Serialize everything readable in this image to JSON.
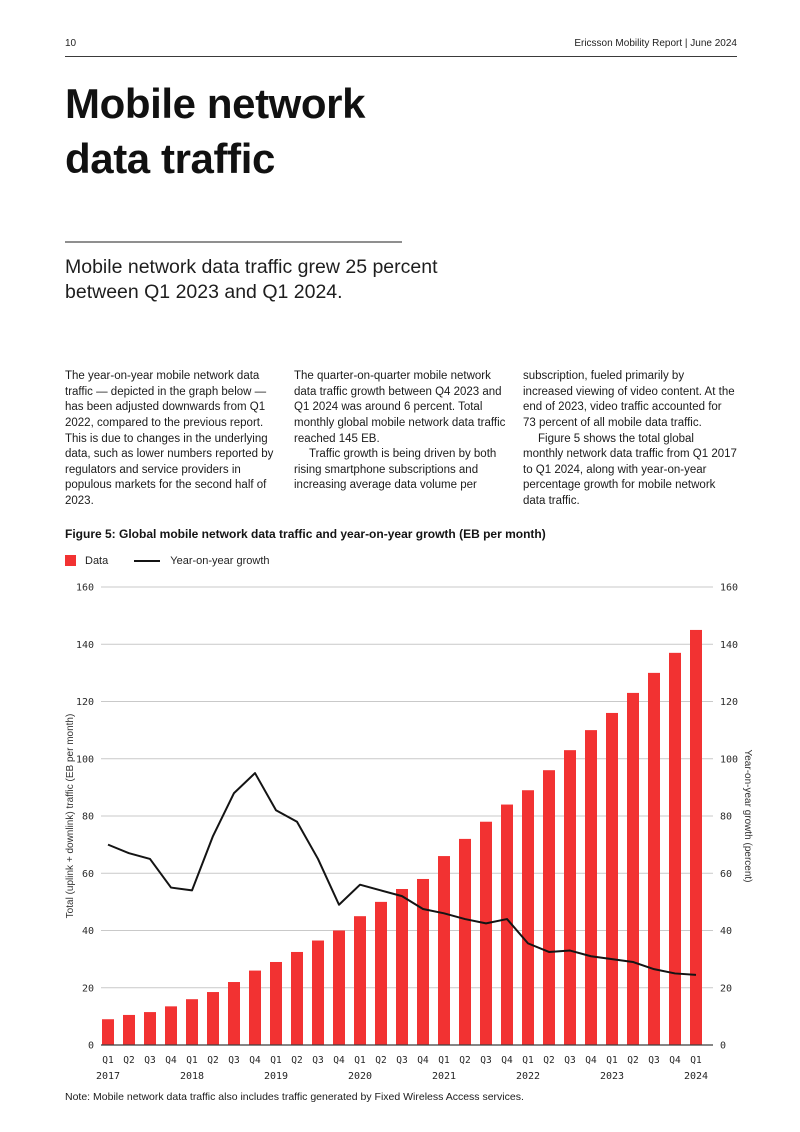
{
  "header": {
    "page_number": "10",
    "right_text": "Ericsson Mobility Report  |  June 2024"
  },
  "title": {
    "line1": "Mobile network",
    "line2": "data traffic"
  },
  "subtitle": "Mobile network data traffic grew 25 percent between Q1 2023 and Q1 2024.",
  "body": {
    "col1_p1": "The year-on-year mobile network data traffic — depicted in the graph below — has been adjusted downwards from Q1 2022, compared to the previous report. This is due to changes in the underlying data, such as lower numbers reported by regulators and service providers in populous markets for the second half of 2023.",
    "col2_p1": "The quarter-on-quarter mobile network data traffic growth between Q4 2023 and Q1 2024 was around 6 percent. Total monthly global mobile network data traffic reached 145 EB.",
    "col2_p2": "Traffic growth is being driven by both rising smartphone subscriptions and increasing average data volume per",
    "col3_p1": "subscription, fueled primarily by increased viewing of video content. At the end of 2023, video traffic accounted for 73 percent of all mobile data traffic.",
    "col3_p2": "Figure 5 shows the total global monthly network data traffic from Q1 2017 to Q1 2024, along with year-on-year percentage growth for mobile network data traffic."
  },
  "figure": {
    "caption": "Figure 5: Global mobile network data traffic and year-on-year growth (EB per month)",
    "legend": [
      {
        "label": "Data",
        "type": "square",
        "color": "#f23232"
      },
      {
        "label": "Year-on-year growth",
        "type": "line",
        "color": "#141414"
      }
    ]
  },
  "chart_data": {
    "type": "bar+line",
    "categories": [
      "Q1",
      "Q2",
      "Q3",
      "Q4",
      "Q1",
      "Q2",
      "Q3",
      "Q4",
      "Q1",
      "Q2",
      "Q3",
      "Q4",
      "Q1",
      "Q2",
      "Q3",
      "Q4",
      "Q1",
      "Q2",
      "Q3",
      "Q4",
      "Q1",
      "Q2",
      "Q3",
      "Q4",
      "Q1",
      "Q2",
      "Q3",
      "Q4",
      "Q1"
    ],
    "year_labels": [
      "2017",
      "2018",
      "2019",
      "2020",
      "2021",
      "2022",
      "2023",
      "2024"
    ],
    "series": [
      {
        "name": "Data",
        "type": "bar",
        "color": "#f23232",
        "values": [
          9,
          10.5,
          11.5,
          13.5,
          16,
          18.5,
          22,
          26,
          29,
          32.5,
          36.5,
          40,
          45,
          50,
          54.5,
          58,
          66,
          72,
          78,
          84,
          89,
          96,
          103,
          110,
          116,
          123,
          130,
          137,
          145
        ]
      },
      {
        "name": "Year-on-year growth",
        "type": "line",
        "color": "#141414",
        "values": [
          70,
          67,
          65,
          55,
          54,
          73,
          88,
          95,
          82,
          78,
          65,
          49,
          56,
          54,
          52,
          47.5,
          46,
          44,
          42.5,
          44,
          35.5,
          32.5,
          33,
          31,
          30,
          29,
          26.5,
          25,
          24.5
        ]
      }
    ],
    "left_axis": {
      "label": "Total (uplink + downlink) traffic (EB per month)",
      "min": 0,
      "max": 160,
      "step": 20
    },
    "right_axis": {
      "label": "Year-on-year growth (percent)",
      "min": 0,
      "max": 160,
      "step": 20
    },
    "grid": true,
    "grid_color": "#c9c9c9",
    "axis_color": "#3f3f3f",
    "legend_position": "top-left"
  },
  "note": "Note: Mobile network data traffic also includes traffic generated by Fixed Wireless Access services."
}
